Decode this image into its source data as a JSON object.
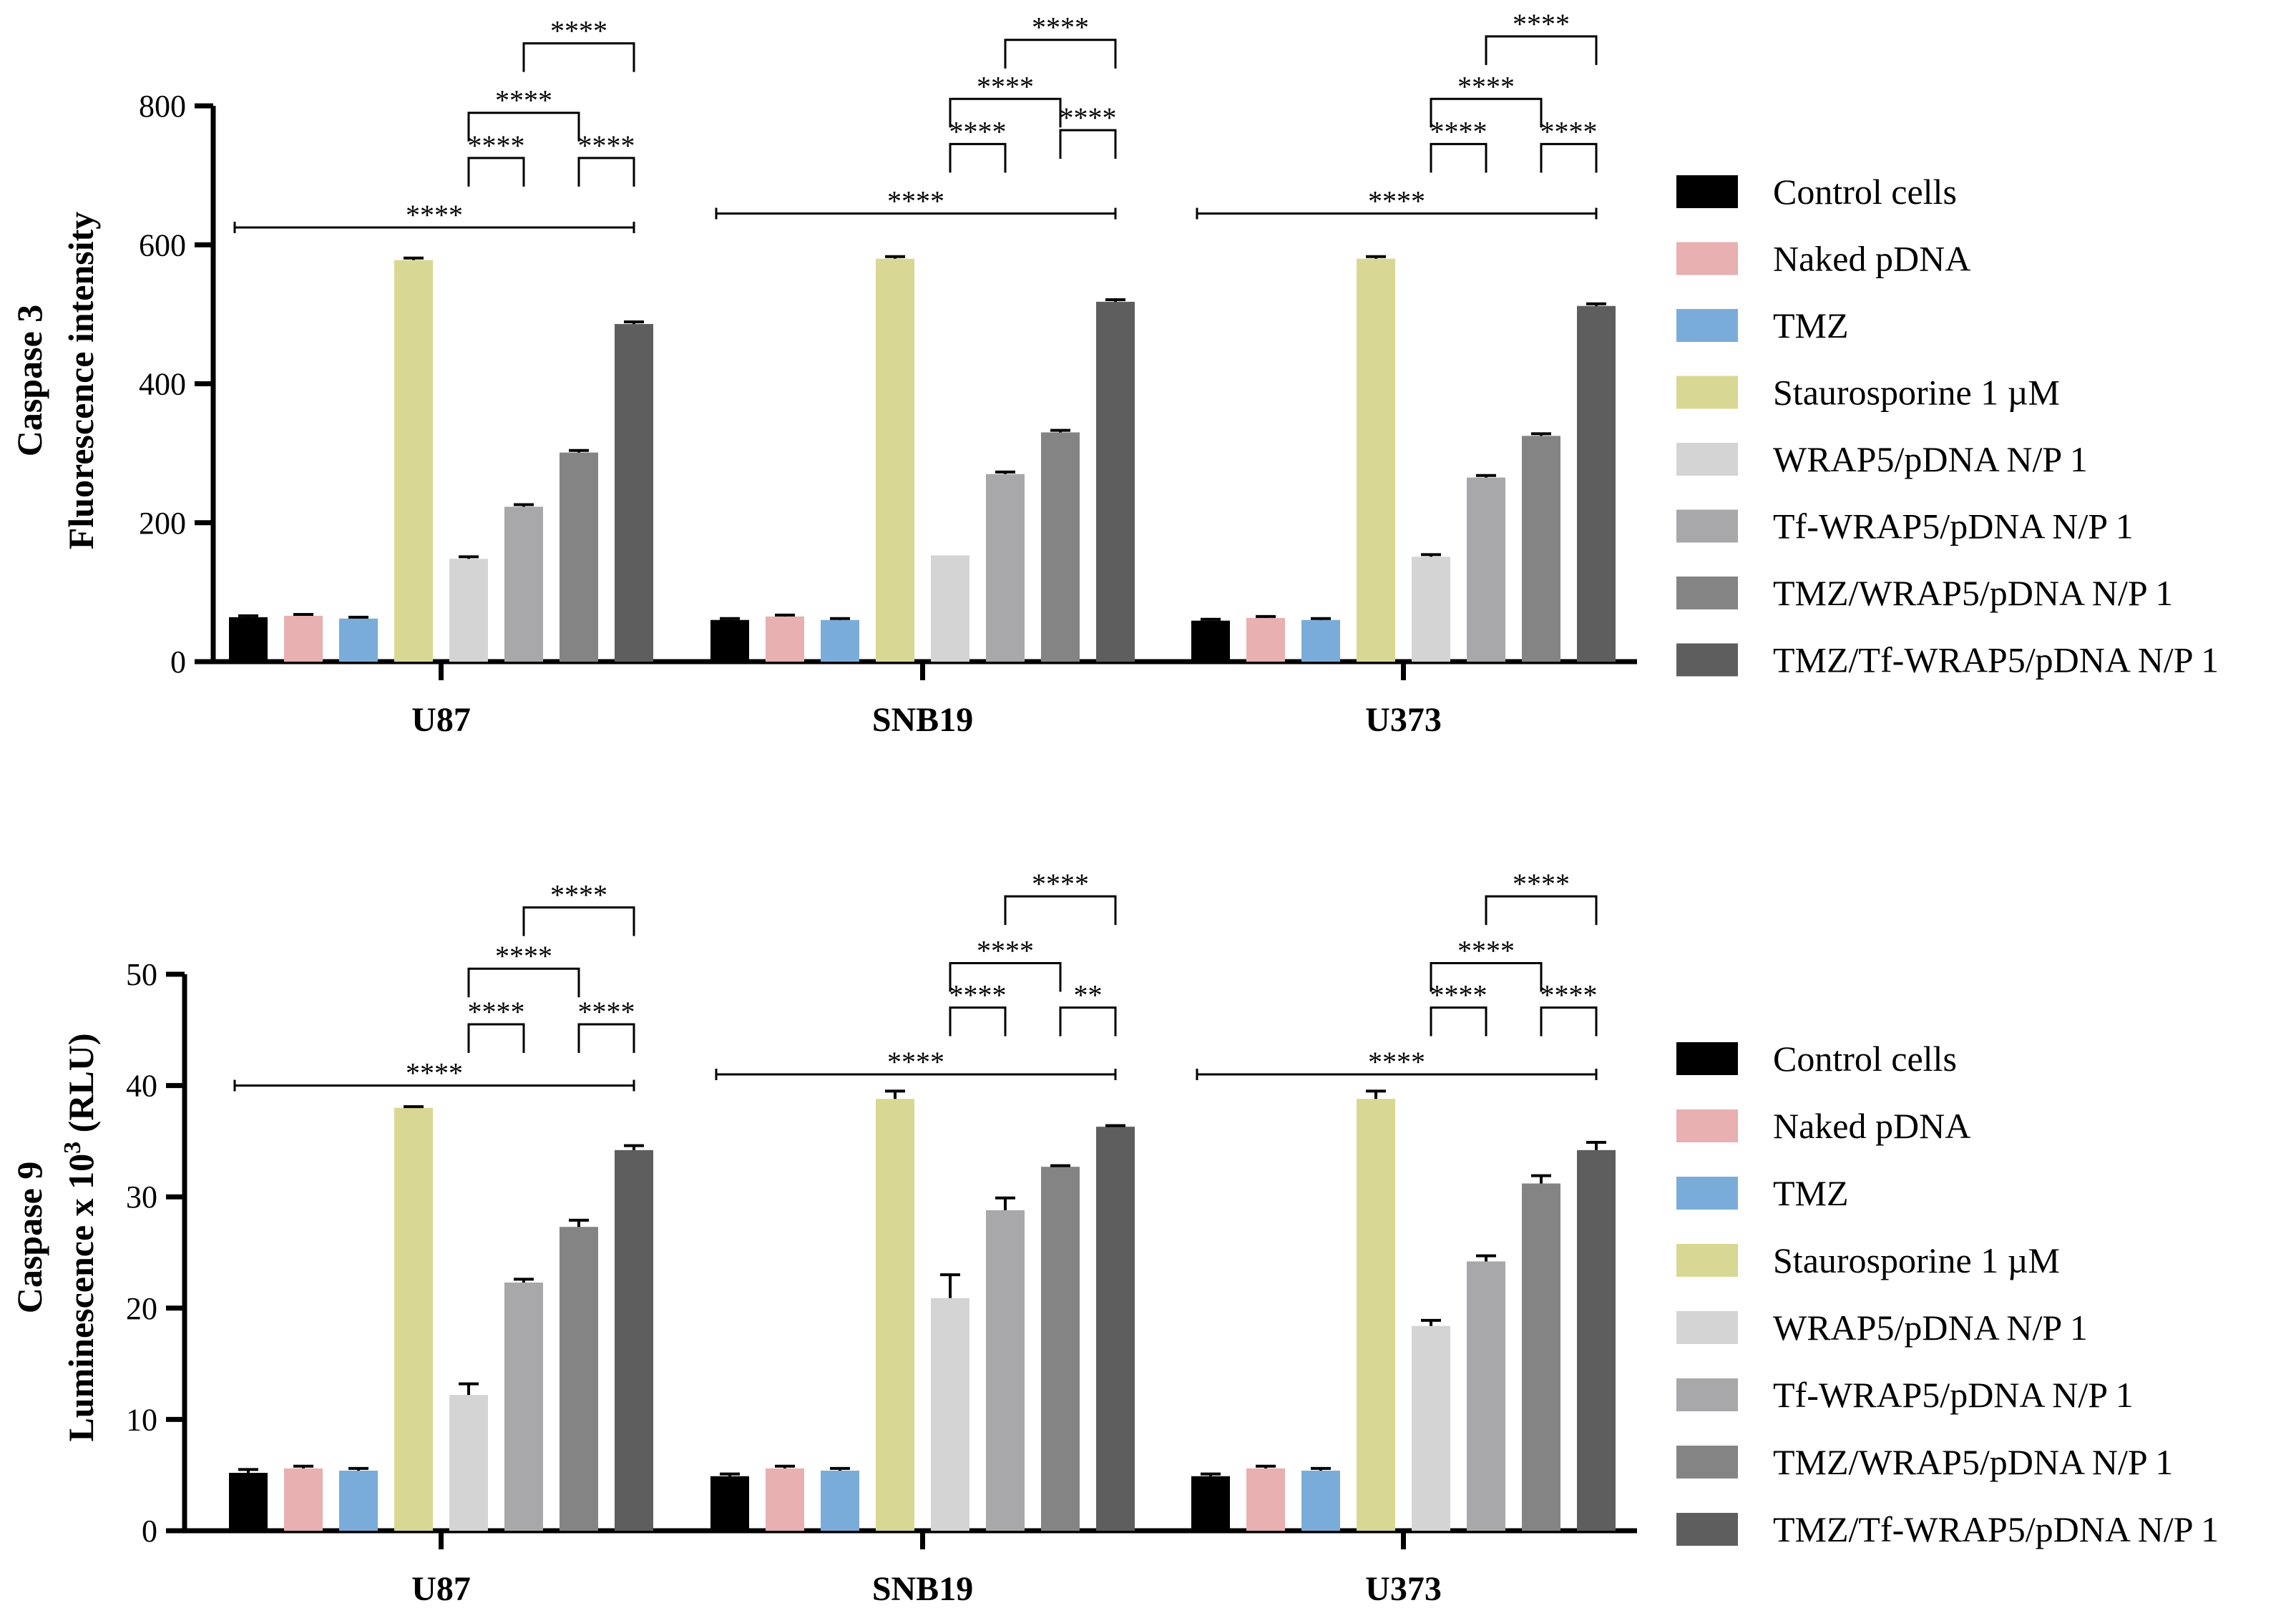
{
  "legend": [
    {
      "label": "Control cells",
      "color": "#000000"
    },
    {
      "label": "Naked pDNA",
      "color": "#e8b0b0"
    },
    {
      "label": "TMZ",
      "color": "#7aacd9"
    },
    {
      "label": "Staurosporine 1 µM",
      "color": "#d8d894"
    },
    {
      "label": "WRAP5/pDNA N/P 1",
      "color": "#d4d4d4"
    },
    {
      "label": "Tf-WRAP5/pDNA N/P 1",
      "color": "#a8a8aa"
    },
    {
      "label": "TMZ/WRAP5/pDNA N/P 1",
      "color": "#848484"
    },
    {
      "label": "TMZ/Tf-WRAP5/pDNA N/P 1",
      "color": "#5e5e5e"
    }
  ],
  "chart_data": [
    {
      "type": "bar",
      "ylabel_line1": "Caspase 3",
      "ylabel_line2": "Fluorescence intensity",
      "ylim": [
        0,
        800
      ],
      "yticks": [
        "0",
        "200",
        "400",
        "600",
        "800"
      ],
      "ytick_values": [
        0,
        200,
        400,
        600,
        800
      ],
      "categories": [
        "U87",
        "SNB19",
        "U373"
      ],
      "series": [
        {
          "name": "Control cells",
          "values": [
            64,
            60,
            59
          ],
          "errors": [
            2,
            2,
            2
          ]
        },
        {
          "name": "Naked pDNA",
          "values": [
            66,
            65,
            63
          ],
          "errors": [
            2,
            2,
            2
          ]
        },
        {
          "name": "TMZ",
          "values": [
            62,
            60,
            60
          ],
          "errors": [
            2,
            2,
            2
          ]
        },
        {
          "name": "Staurosporine 1 µM",
          "values": [
            578,
            580,
            580
          ],
          "errors": [
            3,
            3,
            3
          ]
        },
        {
          "name": "WRAP5/pDNA N/P 1",
          "values": [
            148,
            153,
            151
          ],
          "errors": [
            3,
            0,
            3
          ]
        },
        {
          "name": "Tf-WRAP5/pDNA N/P 1",
          "values": [
            223,
            270,
            265
          ],
          "errors": [
            3,
            3,
            3
          ]
        },
        {
          "name": "TMZ/WRAP5/pDNA N/P 1",
          "values": [
            301,
            330,
            325
          ],
          "errors": [
            3,
            3,
            3
          ]
        },
        {
          "name": "TMZ/Tf-WRAP5/pDNA N/P 1",
          "values": [
            486,
            518,
            512
          ],
          "errors": [
            3,
            3,
            3
          ]
        }
      ],
      "significance": [
        {
          "category": 0,
          "from": 0,
          "to": 7,
          "label": "****",
          "y": 625,
          "style": "line"
        },
        {
          "category": 0,
          "from": 4,
          "to": 5,
          "label": "****",
          "y": 725
        },
        {
          "category": 0,
          "from": 6,
          "to": 7,
          "label": "****",
          "y": 725
        },
        {
          "category": 0,
          "from": 4,
          "to": 6,
          "label": "****",
          "y": 790
        },
        {
          "category": 0,
          "from": 5,
          "to": 7,
          "label": "****",
          "y": 890
        },
        {
          "category": 1,
          "from": 0,
          "to": 7,
          "label": "****",
          "y": 645,
          "style": "line"
        },
        {
          "category": 1,
          "from": 4,
          "to": 5,
          "label": "****",
          "y": 745
        },
        {
          "category": 1,
          "from": 6,
          "to": 7,
          "label": "****",
          "y": 765
        },
        {
          "category": 1,
          "from": 4,
          "to": 6,
          "label": "****",
          "y": 810
        },
        {
          "category": 1,
          "from": 5,
          "to": 7,
          "label": "****",
          "y": 895
        },
        {
          "category": 2,
          "from": 0,
          "to": 7,
          "label": "****",
          "y": 645,
          "style": "line"
        },
        {
          "category": 2,
          "from": 4,
          "to": 5,
          "label": "****",
          "y": 745
        },
        {
          "category": 2,
          "from": 6,
          "to": 7,
          "label": "****",
          "y": 745
        },
        {
          "category": 2,
          "from": 4,
          "to": 6,
          "label": "****",
          "y": 810
        },
        {
          "category": 2,
          "from": 5,
          "to": 7,
          "label": "****",
          "y": 900
        }
      ]
    },
    {
      "type": "bar",
      "ylabel_line1": "Caspase 9",
      "ylabel_line2": "Luminescence x 10",
      "ylabel_sup": "3",
      "ylabel_suffix": " (RLU)",
      "ylim": [
        0,
        50
      ],
      "yticks": [
        "0",
        "10",
        "20",
        "30",
        "40",
        "50"
      ],
      "ytick_values": [
        0,
        10,
        20,
        30,
        40,
        50
      ],
      "categories": [
        "U87",
        "SNB19",
        "U373"
      ],
      "series": [
        {
          "name": "Control cells",
          "values": [
            5.2,
            4.9,
            4.9
          ],
          "errors": [
            0.3,
            0.2,
            0.2
          ]
        },
        {
          "name": "Naked pDNA",
          "values": [
            5.6,
            5.6,
            5.6
          ],
          "errors": [
            0.2,
            0.2,
            0.2
          ]
        },
        {
          "name": "TMZ",
          "values": [
            5.4,
            5.4,
            5.4
          ],
          "errors": [
            0.2,
            0.2,
            0.2
          ]
        },
        {
          "name": "Staurosporine 1 µM",
          "values": [
            38,
            38.8,
            38.8
          ],
          "errors": [
            0.1,
            0.7,
            0.7
          ]
        },
        {
          "name": "WRAP5/pDNA N/P 1",
          "values": [
            12.2,
            20.9,
            18.4
          ],
          "errors": [
            1.0,
            2.1,
            0.5
          ]
        },
        {
          "name": "Tf-WRAP5/pDNA N/P 1",
          "values": [
            22.3,
            28.8,
            24.2
          ],
          "errors": [
            0.3,
            1.1,
            0.5
          ]
        },
        {
          "name": "TMZ/WRAP5/pDNA N/P 1",
          "values": [
            27.3,
            32.7,
            31.2
          ],
          "errors": [
            0.6,
            0.1,
            0.7
          ]
        },
        {
          "name": "TMZ/Tf-WRAP5/pDNA N/P 1",
          "values": [
            34.2,
            36.3,
            34.2
          ],
          "errors": [
            0.4,
            0.1,
            0.7
          ]
        }
      ],
      "significance": [
        {
          "category": 0,
          "from": 0,
          "to": 7,
          "label": "****",
          "y": 40.0,
          "style": "line"
        },
        {
          "category": 0,
          "from": 4,
          "to": 5,
          "label": "****",
          "y": 45.5
        },
        {
          "category": 0,
          "from": 6,
          "to": 7,
          "label": "****",
          "y": 45.5
        },
        {
          "category": 0,
          "from": 4,
          "to": 6,
          "label": "****",
          "y": 50.5
        },
        {
          "category": 0,
          "from": 5,
          "to": 7,
          "label": "****",
          "y": 56.0
        },
        {
          "category": 1,
          "from": 0,
          "to": 7,
          "label": "****",
          "y": 41.0,
          "style": "line"
        },
        {
          "category": 1,
          "from": 4,
          "to": 5,
          "label": "****",
          "y": 47.0
        },
        {
          "category": 1,
          "from": 6,
          "to": 7,
          "label": "**",
          "y": 47.0
        },
        {
          "category": 1,
          "from": 4,
          "to": 6,
          "label": "****",
          "y": 51.0
        },
        {
          "category": 1,
          "from": 5,
          "to": 7,
          "label": "****",
          "y": 57.0
        },
        {
          "category": 2,
          "from": 0,
          "to": 7,
          "label": "****",
          "y": 41.0,
          "style": "line"
        },
        {
          "category": 2,
          "from": 4,
          "to": 5,
          "label": "****",
          "y": 47.0
        },
        {
          "category": 2,
          "from": 6,
          "to": 7,
          "label": "****",
          "y": 47.0
        },
        {
          "category": 2,
          "from": 4,
          "to": 6,
          "label": "****",
          "y": 51.0
        },
        {
          "category": 2,
          "from": 5,
          "to": 7,
          "label": "****",
          "y": 57.0
        }
      ]
    }
  ]
}
